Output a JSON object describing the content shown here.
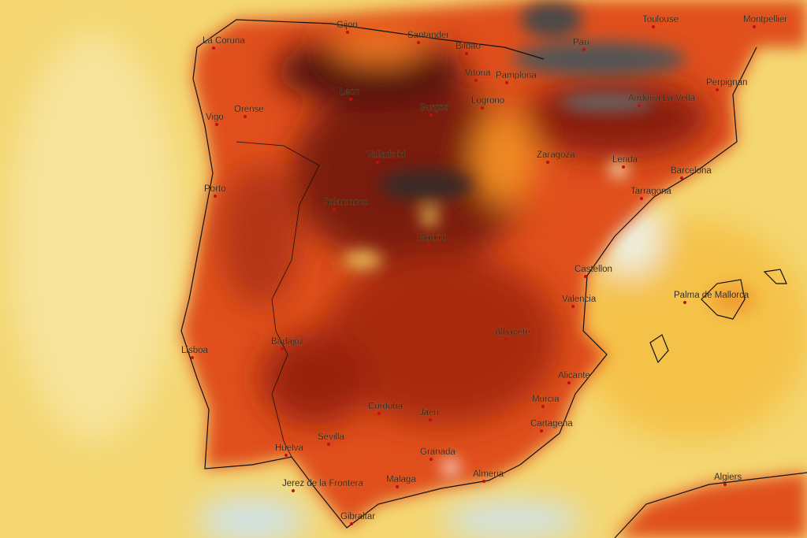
{
  "cities": [
    "Gijon",
    "La Coruna",
    "Santander",
    "Bilbao",
    "Pau",
    "Toulouse",
    "Montpellier",
    "Vitoria",
    "Pamplona",
    "Leon",
    "Orense",
    "Burgos",
    "Logrono",
    "Andorra La Vella",
    "Perpignan",
    "Vigo",
    "Valladolid",
    "Zaragoza",
    "Lerida",
    "Barcelona",
    "Tarragona",
    "Porto",
    "Salamanca",
    "Madrid",
    "Castellon",
    "Palma de Mallorca",
    "Valencia",
    "Albacete",
    "Lisboa",
    "Badajoz",
    "Alicante",
    "Cordoba",
    "Murcia",
    "Jaen",
    "Cartagena",
    "Sevilla",
    "Huelva",
    "Granada",
    "Almeria",
    "Jerez de la Frontera",
    "Malaga",
    "Algiers",
    "Gibraltar"
  ]
}
